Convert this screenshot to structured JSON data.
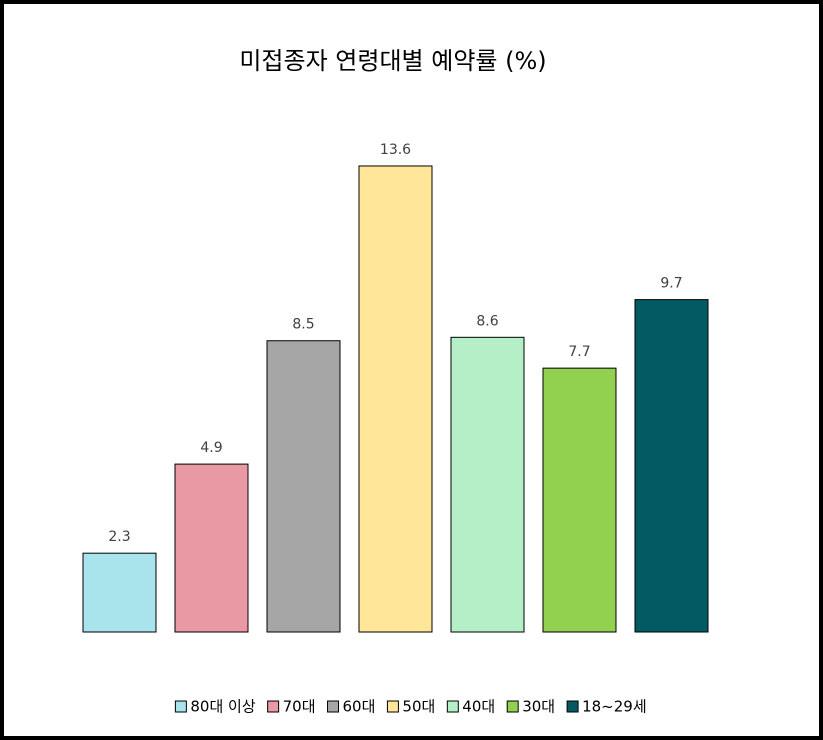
{
  "chart_data": {
    "type": "bar",
    "title": "미접종자 연령대별 예약률 (%)",
    "categories": [
      "80대 이상",
      "70대",
      "60대",
      "50대",
      "40대",
      "30대",
      "18~29세"
    ],
    "values": [
      2.3,
      4.9,
      8.5,
      13.6,
      8.6,
      7.7,
      9.7
    ],
    "colors": [
      "#a9e4ec",
      "#e899a4",
      "#a6a6a6",
      "#ffe699",
      "#b4efc8",
      "#92d050",
      "#045a63"
    ],
    "ylim": [
      0,
      15
    ],
    "legend": "bottom"
  }
}
